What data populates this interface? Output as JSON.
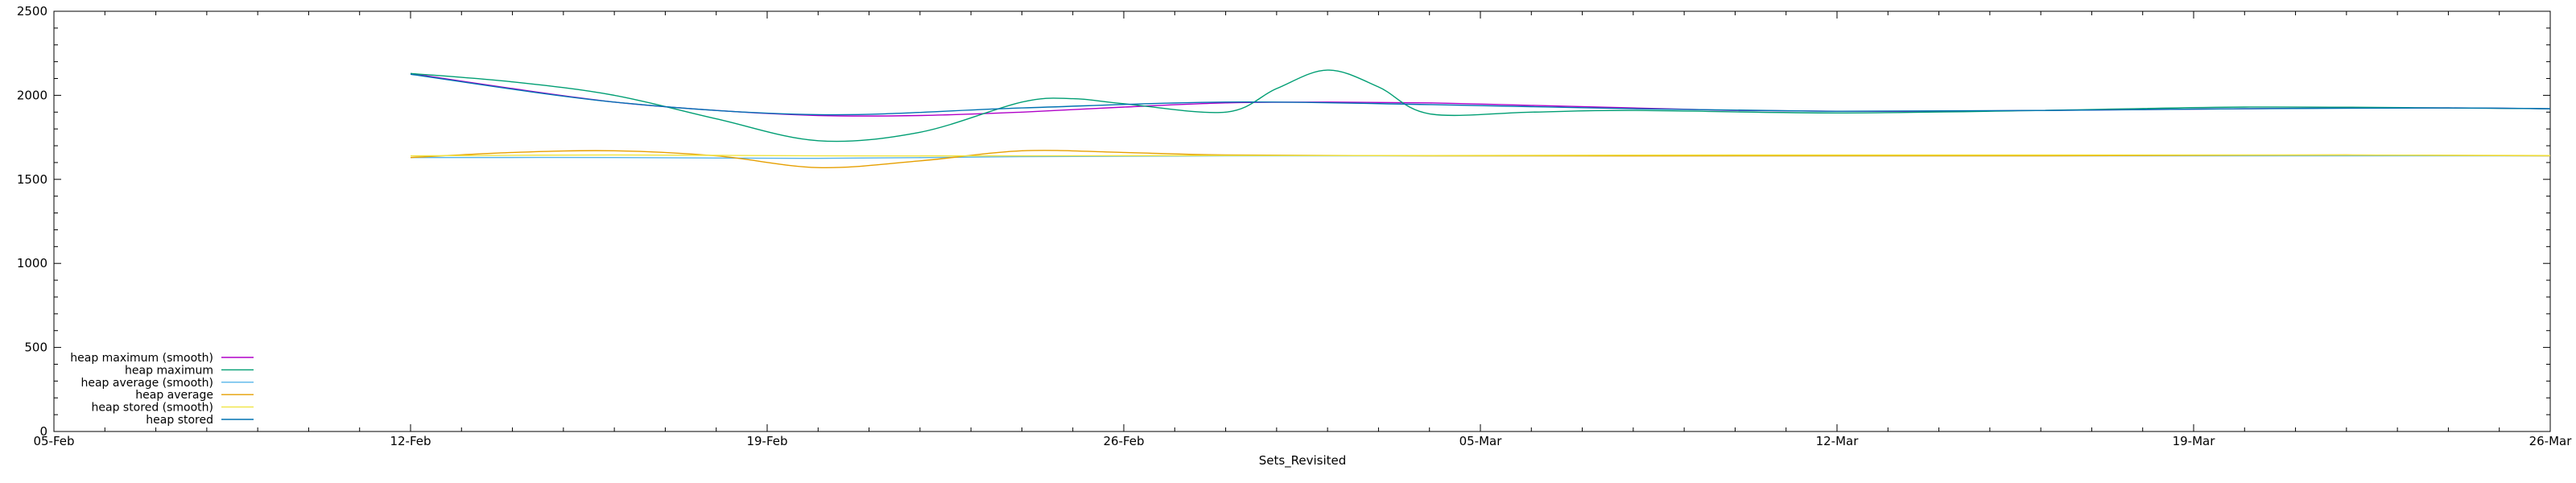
{
  "chart_data": {
    "type": "line",
    "title": "",
    "xlabel": "Sets_Revisited",
    "ylabel": "",
    "xlim": [
      "05-Feb",
      "26-Mar"
    ],
    "ylim": [
      0,
      2500
    ],
    "y_ticks": [
      0,
      500,
      1000,
      1500,
      2000,
      2500
    ],
    "x_ticks": [
      "05-Feb",
      "12-Feb",
      "19-Feb",
      "26-Feb",
      "05-Mar",
      "12-Mar",
      "19-Mar",
      "26-Mar"
    ],
    "grid": false,
    "legend_position": "bottom-left",
    "series": [
      {
        "name": "heap maximum (smooth)",
        "color": "#b000c8",
        "x": [
          "12-Feb",
          "14-Feb",
          "16-Feb",
          "18-Feb",
          "20-Feb",
          "22-Feb",
          "24-Feb",
          "26-Feb",
          "28-Feb",
          "02-Mar",
          "04-Mar",
          "06-Mar",
          "08-Mar",
          "10-Mar",
          "12-Mar",
          "14-Mar",
          "16-Mar",
          "18-Mar",
          "20-Mar",
          "22-Mar",
          "24-Mar",
          "26-Mar"
        ],
        "values": [
          2130,
          2040,
          1960,
          1910,
          1880,
          1880,
          1900,
          1930,
          1955,
          1960,
          1955,
          1940,
          1925,
          1910,
          1905,
          1905,
          1910,
          1915,
          1920,
          1925,
          1925,
          1920
        ]
      },
      {
        "name": "heap maximum",
        "color": "#009e73",
        "x": [
          "12-Feb",
          "14-Feb",
          "16-Feb",
          "18-Feb",
          "20-Feb",
          "22-Feb",
          "24-Feb",
          "25-Feb",
          "26-Feb",
          "28-Feb",
          "01-Mar",
          "02-Mar",
          "03-Mar",
          "04-Mar",
          "06-Mar",
          "08-Mar",
          "12-Mar",
          "16-Mar",
          "20-Mar",
          "24-Mar",
          "26-Mar"
        ],
        "values": [
          2130,
          2080,
          2000,
          1860,
          1730,
          1780,
          1960,
          1980,
          1950,
          1900,
          2040,
          2150,
          2050,
          1890,
          1900,
          1910,
          1895,
          1910,
          1930,
          1925,
          1920
        ]
      },
      {
        "name": "heap average (smooth)",
        "color": "#56b4e9",
        "x": [
          "12-Feb",
          "16-Feb",
          "20-Feb",
          "24-Feb",
          "28-Feb",
          "04-Mar",
          "08-Mar",
          "12-Mar",
          "16-Mar",
          "20-Mar",
          "24-Mar",
          "26-Mar"
        ],
        "values": [
          1630,
          1630,
          1625,
          1635,
          1640,
          1640,
          1640,
          1640,
          1640,
          1640,
          1640,
          1640
        ]
      },
      {
        "name": "heap average",
        "color": "#e69f00",
        "x": [
          "12-Feb",
          "14-Feb",
          "16-Feb",
          "18-Feb",
          "20-Feb",
          "22-Feb",
          "24-Feb",
          "26-Feb",
          "28-Feb",
          "04-Mar",
          "10-Mar",
          "16-Mar",
          "22-Mar",
          "26-Mar"
        ],
        "values": [
          1630,
          1660,
          1670,
          1640,
          1570,
          1610,
          1670,
          1660,
          1645,
          1640,
          1640,
          1640,
          1645,
          1640
        ]
      },
      {
        "name": "heap stored (smooth)",
        "color": "#f0e442",
        "x": [
          "12-Feb",
          "16-Feb",
          "20-Feb",
          "24-Feb",
          "28-Feb",
          "04-Mar",
          "10-Mar",
          "16-Mar",
          "22-Mar",
          "26-Mar"
        ],
        "values": [
          1640,
          1645,
          1640,
          1640,
          1642,
          1642,
          1645,
          1645,
          1645,
          1642
        ]
      },
      {
        "name": "heap stored",
        "color": "#0072b2",
        "x": [
          "12-Feb",
          "16-Feb",
          "20-Feb",
          "24-Feb",
          "28-Feb",
          "04-Mar",
          "08-Mar",
          "12-Mar",
          "16-Mar",
          "20-Mar",
          "24-Mar",
          "26-Mar"
        ],
        "values": [
          2125,
          1960,
          1885,
          1925,
          1960,
          1945,
          1920,
          1905,
          1910,
          1920,
          1925,
          1920
        ]
      }
    ]
  }
}
